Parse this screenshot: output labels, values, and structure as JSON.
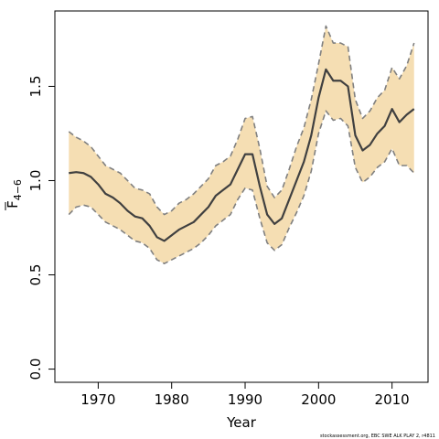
{
  "chart_data": {
    "type": "line",
    "xlabel": "Year",
    "ylabel_main": "F",
    "ylabel_sub": "4−6",
    "xticks": [
      "1970",
      "1980",
      "1990",
      "2000",
      "2010"
    ],
    "xtick_values": [
      1970,
      1980,
      1990,
      2000,
      2010
    ],
    "yticks": [
      "0.0",
      "0.5",
      "1.0",
      "1.5"
    ],
    "ytick_values": [
      0.0,
      0.5,
      1.0,
      1.5
    ],
    "xlim": [
      1964.1,
      2014.9
    ],
    "ylim": [
      -0.07,
      1.9
    ],
    "grid": false,
    "colors": {
      "band": "#f5deb3",
      "estimate": "#404040",
      "bounds": "#808080"
    },
    "x": [
      1966,
      1967,
      1968,
      1969,
      1970,
      1971,
      1972,
      1973,
      1974,
      1975,
      1976,
      1977,
      1978,
      1979,
      1980,
      1981,
      1982,
      1983,
      1984,
      1985,
      1986,
      1987,
      1988,
      1989,
      1990,
      1991,
      1992,
      1993,
      1994,
      1995,
      1996,
      1997,
      1998,
      1999,
      2000,
      2001,
      2002,
      2003,
      2004,
      2005,
      2006,
      2007,
      2008,
      2009,
      2010,
      2011,
      2012,
      2013
    ],
    "series": [
      {
        "role": "estimate",
        "values": [
          1.04,
          1.045,
          1.04,
          1.02,
          0.98,
          0.93,
          0.91,
          0.88,
          0.84,
          0.81,
          0.8,
          0.76,
          0.7,
          0.68,
          0.71,
          0.74,
          0.76,
          0.78,
          0.82,
          0.86,
          0.92,
          0.95,
          0.98,
          1.06,
          1.14,
          1.14,
          0.97,
          0.82,
          0.77,
          0.8,
          0.9,
          1.0,
          1.1,
          1.24,
          1.44,
          1.59,
          1.53,
          1.53,
          1.5,
          1.24,
          1.16,
          1.19,
          1.25,
          1.29,
          1.38,
          1.31,
          1.35,
          1.38
        ]
      },
      {
        "role": "upper",
        "values": [
          1.26,
          1.23,
          1.21,
          1.18,
          1.13,
          1.08,
          1.06,
          1.04,
          1.0,
          0.96,
          0.95,
          0.93,
          0.86,
          0.82,
          0.84,
          0.88,
          0.9,
          0.93,
          0.97,
          1.01,
          1.08,
          1.1,
          1.13,
          1.22,
          1.33,
          1.34,
          1.17,
          0.97,
          0.91,
          0.95,
          1.06,
          1.18,
          1.28,
          1.43,
          1.62,
          1.82,
          1.73,
          1.73,
          1.71,
          1.43,
          1.33,
          1.37,
          1.44,
          1.48,
          1.6,
          1.54,
          1.61,
          1.73
        ]
      },
      {
        "role": "lower",
        "values": [
          0.82,
          0.86,
          0.87,
          0.86,
          0.82,
          0.78,
          0.76,
          0.74,
          0.71,
          0.68,
          0.67,
          0.64,
          0.58,
          0.56,
          0.58,
          0.6,
          0.62,
          0.64,
          0.67,
          0.71,
          0.76,
          0.79,
          0.82,
          0.9,
          0.96,
          0.95,
          0.8,
          0.67,
          0.63,
          0.66,
          0.75,
          0.83,
          0.92,
          1.05,
          1.25,
          1.37,
          1.32,
          1.33,
          1.29,
          1.07,
          0.99,
          1.02,
          1.07,
          1.1,
          1.17,
          1.08,
          1.08,
          1.04
        ]
      }
    ]
  },
  "footer": "stockassessment.org, EBC SWE ALK PLAY 2, r4811"
}
